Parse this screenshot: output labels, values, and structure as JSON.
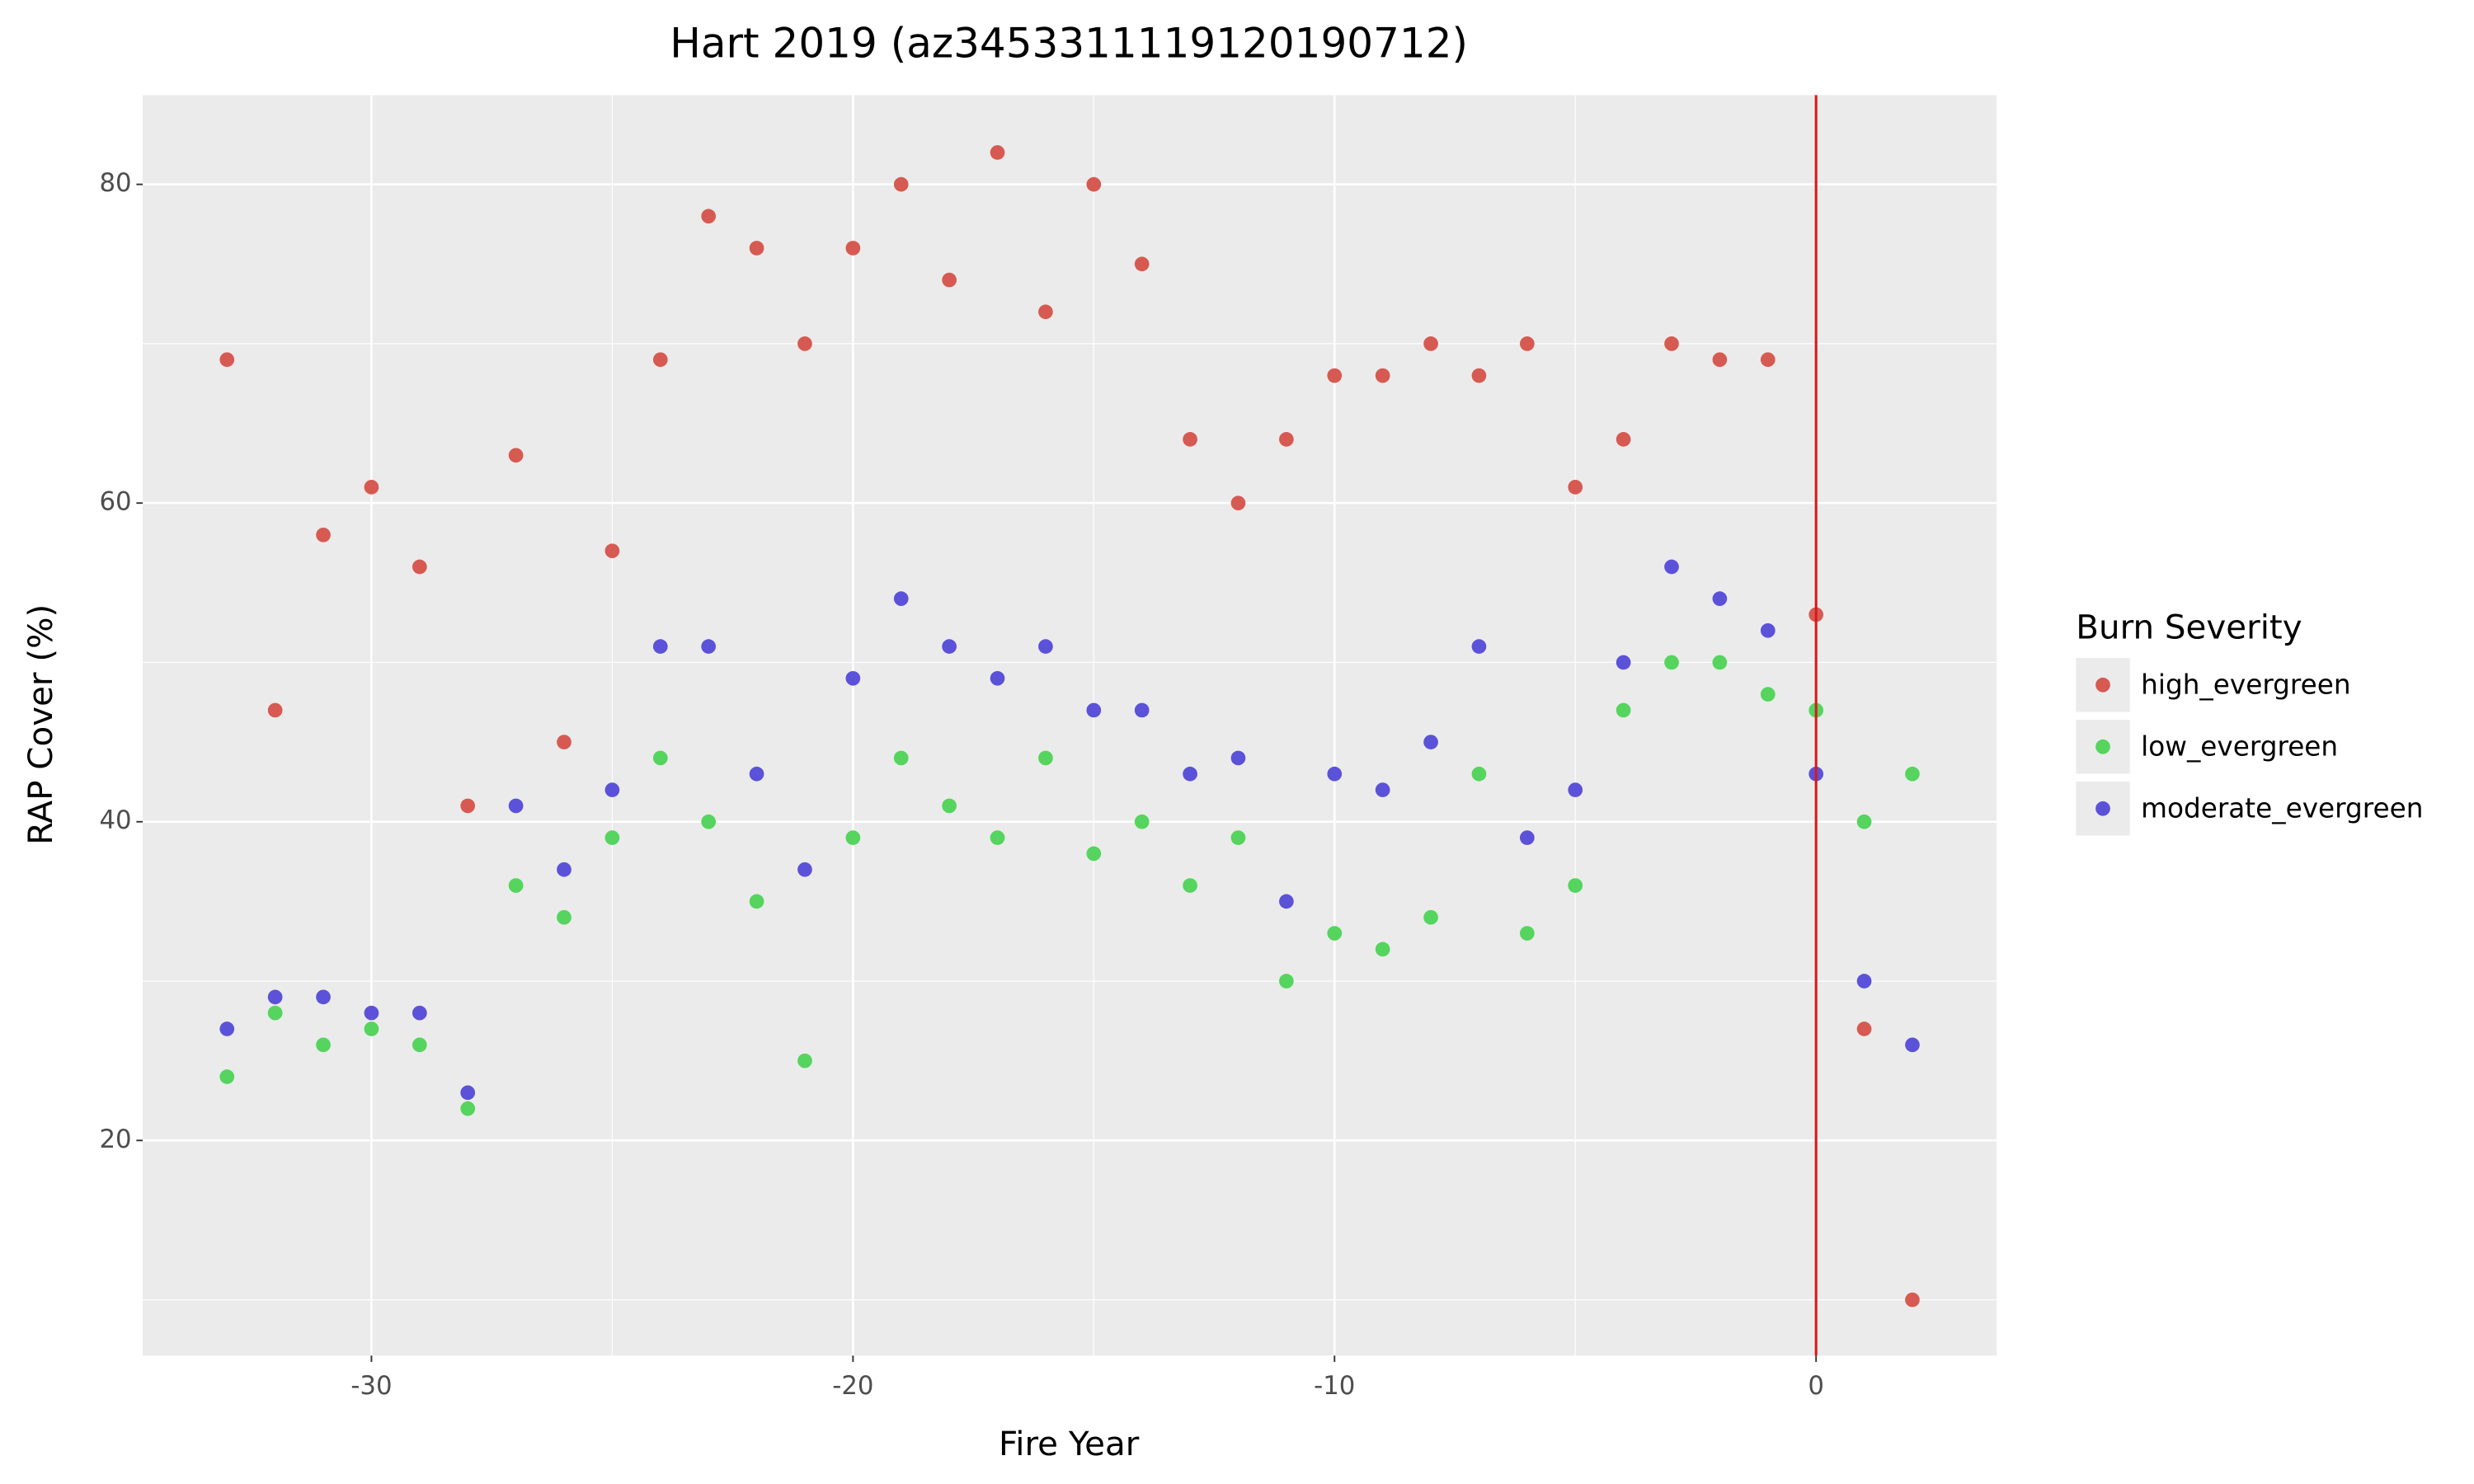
{
  "chart_data": {
    "type": "scatter",
    "title": "Hart 2019 (az3453311119120190712)",
    "x_label": "Fire Year",
    "y_label": "RAP Cover (%)",
    "legend_title": "Burn Severity",
    "legend_position": "right",
    "xlim": [
      -34.75,
      3.75
    ],
    "ylim": [
      6.5,
      85.6
    ],
    "xticks": [
      -30,
      -20,
      -10,
      0
    ],
    "yticks": [
      20,
      40,
      60,
      80
    ],
    "x_minor_ticks": [
      -25,
      -15,
      -5
    ],
    "y_minor_ticks": [
      10,
      30,
      50,
      70
    ],
    "grid": true,
    "reference_line_x": 0,
    "reference_line_color": "#d7191c",
    "x": [
      -33,
      -32,
      -31,
      -30,
      -29,
      -28,
      -27,
      -26,
      -25,
      -24,
      -23,
      -22,
      -21,
      -20,
      -19,
      -18,
      -17,
      -16,
      -15,
      -14,
      -13,
      -12,
      -11,
      -10,
      -9,
      -8,
      -7,
      -6,
      -5,
      -4,
      -3,
      -2,
      -1,
      0,
      1,
      2
    ],
    "series": [
      {
        "name": "high_evergreen",
        "color": "#d65a52",
        "values": [
          69,
          47,
          58,
          61,
          56,
          41,
          63,
          45,
          57,
          69,
          78,
          76,
          70,
          76,
          80,
          74,
          82,
          72,
          80,
          75,
          64,
          60,
          64,
          68,
          68,
          70,
          68,
          70,
          61,
          64,
          70,
          69,
          69,
          53,
          27,
          10
        ]
      },
      {
        "name": "low_evergreen",
        "color": "#55d45e",
        "values": [
          24,
          28,
          26,
          27,
          26,
          22,
          36,
          34,
          39,
          44,
          40,
          35,
          25,
          39,
          44,
          41,
          39,
          44,
          38,
          40,
          36,
          39,
          30,
          33,
          32,
          34,
          43,
          33,
          36,
          47,
          50,
          50,
          48,
          47,
          40,
          43
        ]
      },
      {
        "name": "moderate_evergreen",
        "color": "#5b52d9",
        "values": [
          27,
          29,
          29,
          28,
          28,
          23,
          41,
          37,
          42,
          51,
          51,
          43,
          37,
          49,
          54,
          51,
          49,
          51,
          47,
          47,
          43,
          44,
          35,
          43,
          42,
          45,
          51,
          39,
          42,
          50,
          56,
          54,
          52,
          43,
          30,
          26
        ]
      }
    ]
  }
}
